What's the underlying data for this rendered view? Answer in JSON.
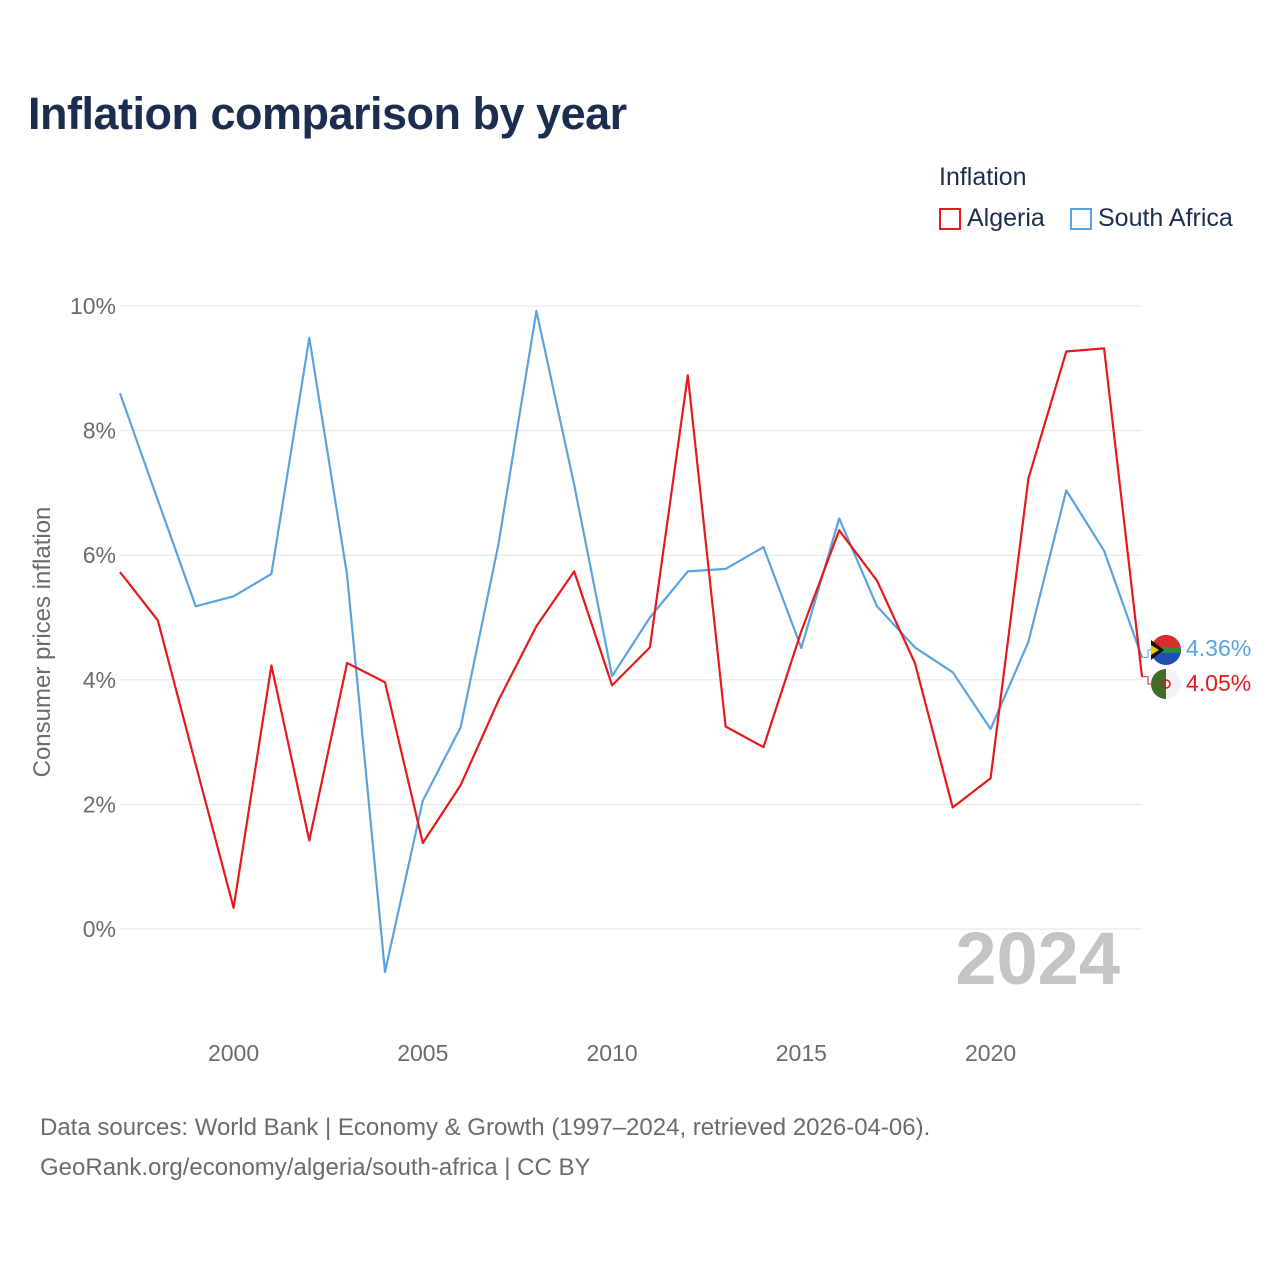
{
  "title": "Inflation comparison by year",
  "legend": {
    "title": "Inflation",
    "items": [
      {
        "label": "Algeria",
        "color": "#e41a1c"
      },
      {
        "label": "South Africa",
        "color": "#5ba3e0"
      }
    ]
  },
  "chart_data": {
    "type": "line",
    "title": "Inflation comparison by year",
    "xlabel": "",
    "ylabel": "Consumer prices inflation",
    "xlim": [
      1997,
      2024
    ],
    "ylim": [
      -1.2,
      10.5
    ],
    "x_ticks": [
      2000,
      2005,
      2010,
      2015,
      2020
    ],
    "y_ticks": [
      0,
      2,
      4,
      6,
      8,
      10
    ],
    "y_tick_labels": [
      "0%",
      "2%",
      "4%",
      "6%",
      "8%",
      "10%"
    ],
    "x": [
      1997,
      1998,
      1999,
      2000,
      2001,
      2002,
      2003,
      2004,
      2005,
      2006,
      2007,
      2008,
      2009,
      2010,
      2011,
      2012,
      2013,
      2014,
      2015,
      2016,
      2017,
      2018,
      2019,
      2020,
      2021,
      2022,
      2023,
      2024
    ],
    "series": [
      {
        "name": "Algeria",
        "color": "#e41a1c",
        "values": [
          5.73,
          4.95,
          2.64,
          0.34,
          4.23,
          1.42,
          4.27,
          3.96,
          1.38,
          2.31,
          3.67,
          4.86,
          5.74,
          3.91,
          4.52,
          8.89,
          3.25,
          2.92,
          4.78,
          6.4,
          5.59,
          4.27,
          1.95,
          2.42,
          7.23,
          9.27,
          9.32,
          4.05
        ]
      },
      {
        "name": "South Africa",
        "color": "#5ba3e0",
        "values": [
          8.6,
          6.88,
          5.18,
          5.34,
          5.7,
          9.49,
          5.68,
          -0.69,
          2.06,
          3.24,
          6.18,
          9.92,
          7.13,
          4.06,
          5.0,
          5.74,
          5.78,
          6.13,
          4.51,
          6.59,
          5.18,
          4.52,
          4.12,
          3.21,
          4.61,
          7.04,
          6.07,
          4.36
        ]
      }
    ],
    "end_labels": [
      {
        "series": "South Africa",
        "text": "4.36%"
      },
      {
        "series": "Algeria",
        "text": "4.05%"
      }
    ],
    "year_watermark": "2024",
    "grid": true
  },
  "source": {
    "line1": "Data sources: World Bank | Economy & Growth (1997–2024, retrieved 2026-04-06).",
    "line2": "GeoRank.org/economy/algeria/south-africa | CC BY"
  }
}
